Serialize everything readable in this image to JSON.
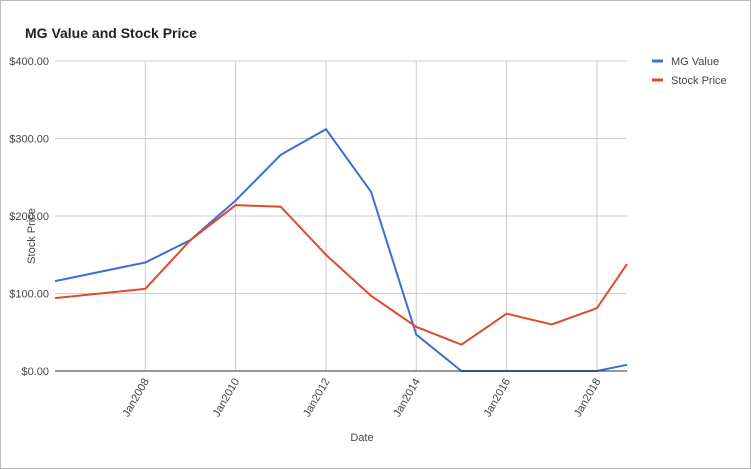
{
  "chart_data": {
    "type": "line",
    "title": "MG Value and Stock Price",
    "x_label": "Date",
    "y_label": "Stock Price",
    "x": [
      "2006-01",
      "2008-01",
      "2009-01",
      "2010-01",
      "2011-01",
      "2012-01",
      "2013-01",
      "2014-01",
      "2015-01",
      "2016-01",
      "2017-01",
      "2018-01",
      "2018-09"
    ],
    "series": [
      {
        "name": "MG Value",
        "color": "#3c6fd0",
        "values": [
          116,
          140,
          169,
          220,
          279,
          312,
          231,
          47,
          0,
          0,
          0,
          0,
          8
        ]
      },
      {
        "name": "Stock Price",
        "color": "#dc4b2c",
        "values": [
          94,
          106,
          169,
          214,
          212,
          150,
          97,
          57,
          34,
          74,
          60,
          81,
          138
        ]
      }
    ],
    "xlim": [
      "2006-01",
      "2018-09"
    ],
    "xticks": [
      {
        "value": "2008-01",
        "label": "Jan2008"
      },
      {
        "value": "2010-01",
        "label": "Jan2010"
      },
      {
        "value": "2012-01",
        "label": "Jan2012"
      },
      {
        "value": "2014-01",
        "label": "Jan2014"
      },
      {
        "value": "2016-01",
        "label": "Jan2016"
      },
      {
        "value": "2018-01",
        "label": "Jan2018"
      }
    ],
    "ylim": [
      0,
      400
    ],
    "yticks": [
      {
        "value": 0,
        "label": "$0.00"
      },
      {
        "value": 100,
        "label": "$100.00"
      },
      {
        "value": 200,
        "label": "$200.00"
      },
      {
        "value": 300,
        "label": "$300.00"
      },
      {
        "value": 400,
        "label": "$400.00"
      }
    ],
    "grid": true,
    "legend": "right"
  }
}
